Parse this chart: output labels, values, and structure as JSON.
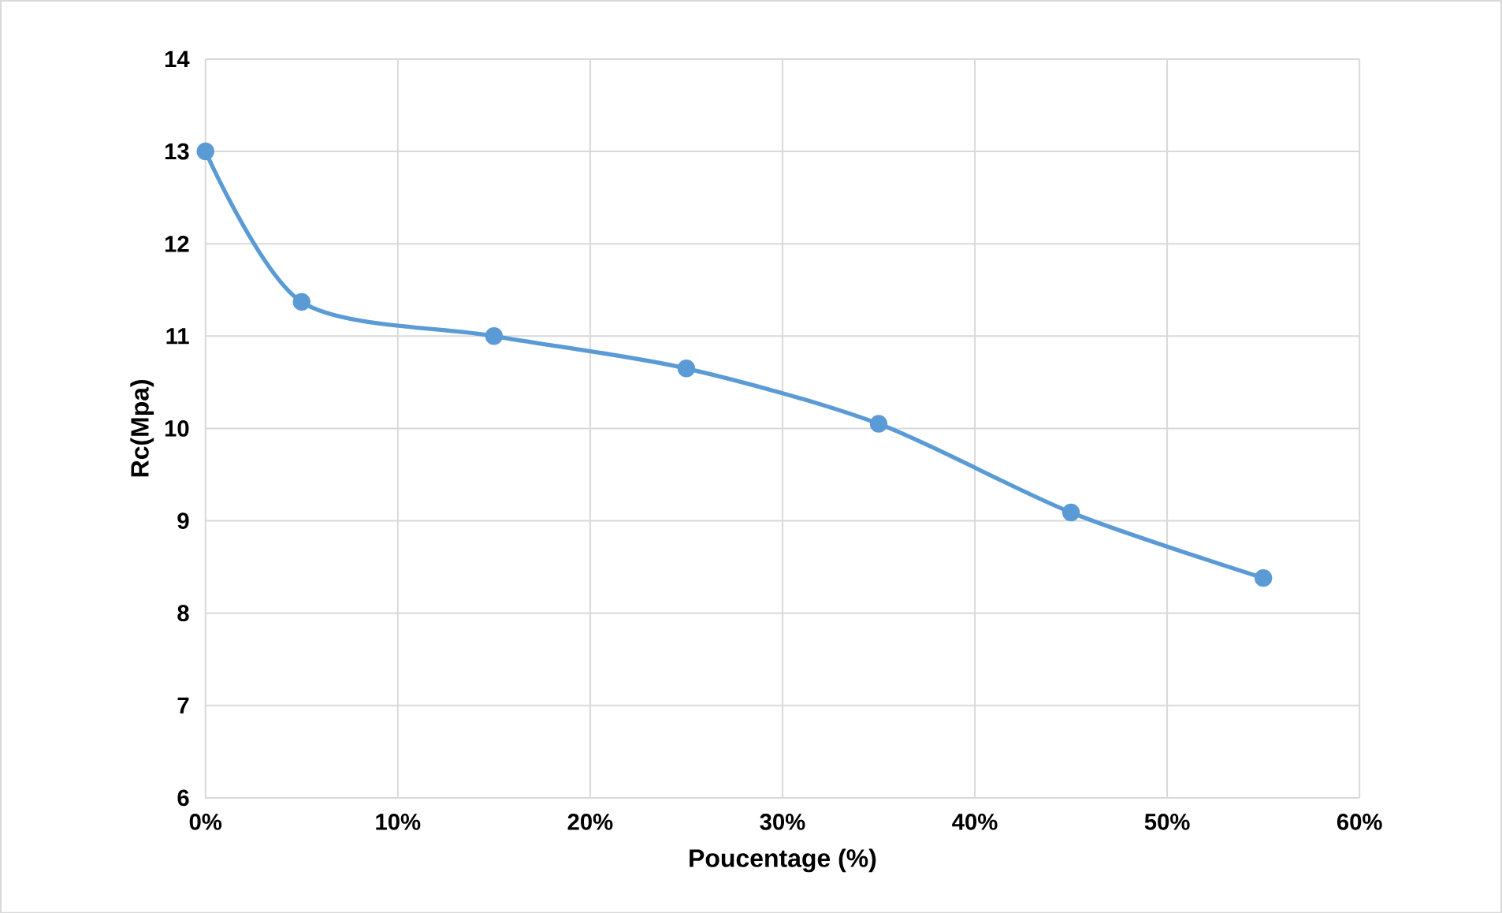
{
  "chart_data": {
    "type": "line",
    "xlabel": "Poucentage (%)",
    "ylabel": "Rc(Mpa)",
    "x": [
      0,
      5,
      15,
      25,
      35,
      45,
      55
    ],
    "series": [
      {
        "color": "#5b9bd5",
        "values": [
          13.0,
          11.37,
          11.0,
          10.65,
          10.05,
          9.09,
          8.38
        ]
      }
    ],
    "xlim": [
      0,
      60
    ],
    "ylim": [
      6,
      14
    ],
    "xticks": [
      {
        "value": 0,
        "label": "0%"
      },
      {
        "value": 10,
        "label": "10%"
      },
      {
        "value": 20,
        "label": "20%"
      },
      {
        "value": 30,
        "label": "30%"
      },
      {
        "value": 40,
        "label": "40%"
      },
      {
        "value": 50,
        "label": "50%"
      },
      {
        "value": 60,
        "label": "60%"
      }
    ],
    "yticks": [
      6,
      7,
      8,
      9,
      10,
      11,
      12,
      13,
      14
    ],
    "grid": true,
    "marker": "circle",
    "line_style": "solid"
  }
}
